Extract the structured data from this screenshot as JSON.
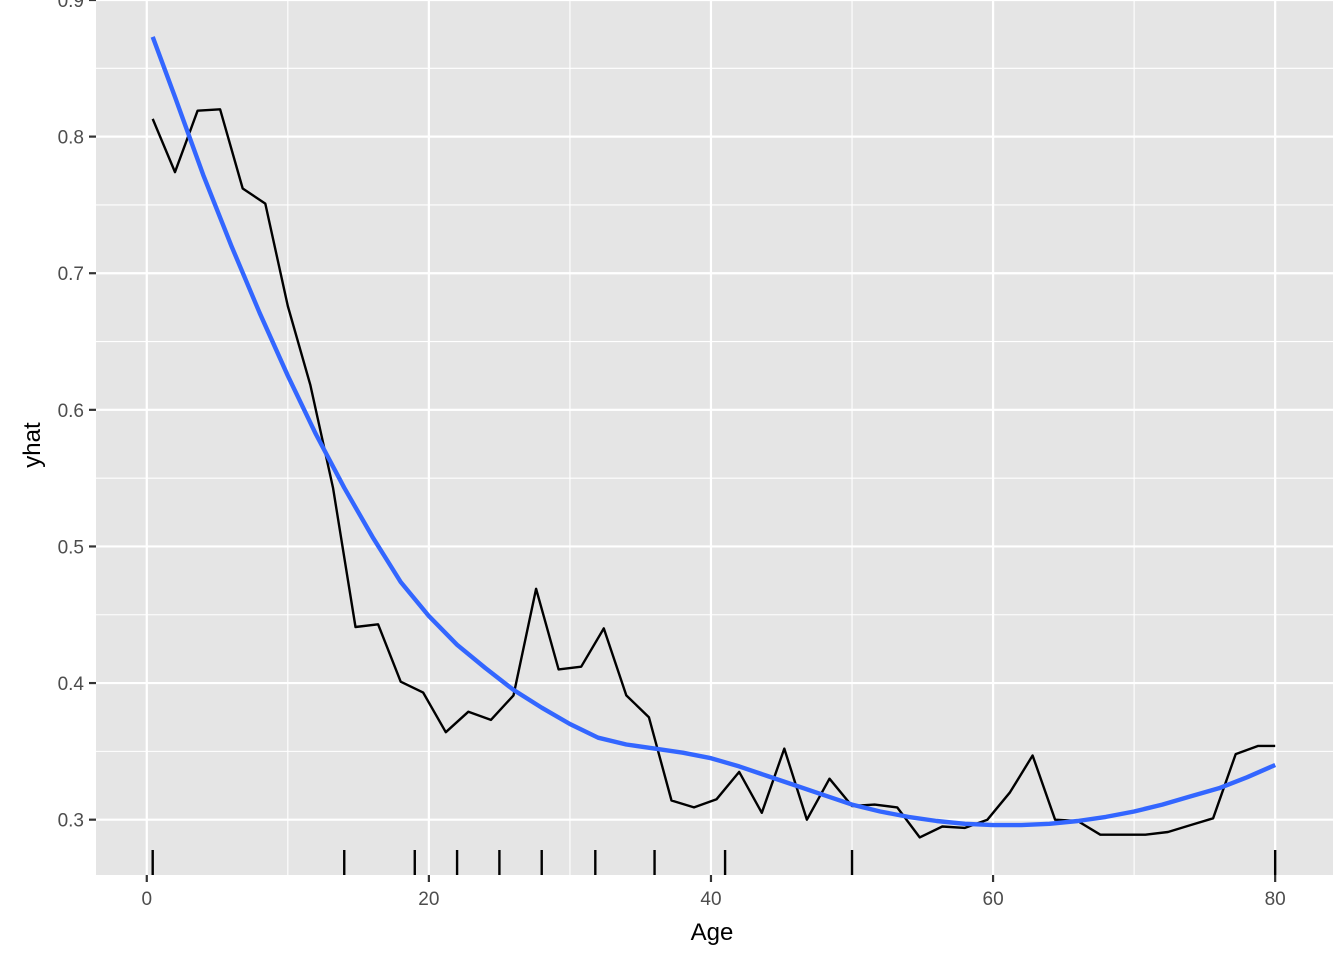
{
  "chart_data": {
    "type": "line",
    "title": "",
    "xlabel": "Age",
    "ylabel": "yhat",
    "xlim": [
      -3.6,
      84.1
    ],
    "ylim": [
      0.2595,
      0.9
    ],
    "x_ticks": [
      0,
      20,
      40,
      60,
      80
    ],
    "x_tick_labels": [
      "0",
      "20",
      "40",
      "60",
      "80"
    ],
    "y_ticks": [
      0.3,
      0.4,
      0.5,
      0.6,
      0.7,
      0.8,
      0.9
    ],
    "y_tick_labels": [
      "0.3",
      "0.4",
      "0.5",
      "0.6",
      "0.7",
      "0.8",
      "0.9"
    ],
    "grid": true,
    "colors": {
      "panel": "#e5e5e5",
      "grid": "#ffffff",
      "line": "#000000",
      "smooth": "#3366ff",
      "rug": "#000000"
    },
    "series": [
      {
        "name": "yhat",
        "x": [
          0.42,
          2.0,
          3.6,
          5.2,
          6.8,
          8.4,
          10.0,
          11.6,
          13.2,
          14.8,
          16.4,
          18.0,
          19.6,
          21.2,
          22.8,
          24.4,
          26.0,
          27.6,
          29.2,
          30.8,
          32.4,
          34.0,
          35.6,
          37.2,
          38.8,
          40.4,
          42.0,
          43.6,
          45.2,
          46.8,
          48.4,
          50.0,
          51.6,
          53.2,
          54.8,
          56.4,
          58.0,
          59.6,
          61.2,
          62.8,
          64.4,
          66.0,
          67.6,
          69.2,
          70.8,
          72.4,
          74.0,
          75.6,
          77.2,
          78.8,
          80.0
        ],
        "values": [
          0.813,
          0.774,
          0.819,
          0.82,
          0.762,
          0.751,
          0.676,
          0.618,
          0.543,
          0.441,
          0.443,
          0.401,
          0.393,
          0.364,
          0.379,
          0.373,
          0.391,
          0.469,
          0.41,
          0.412,
          0.44,
          0.391,
          0.375,
          0.314,
          0.309,
          0.315,
          0.335,
          0.305,
          0.352,
          0.3,
          0.33,
          0.31,
          0.311,
          0.309,
          0.287,
          0.295,
          0.294,
          0.3,
          0.32,
          0.347,
          0.3,
          0.299,
          0.289,
          0.289,
          0.289,
          0.291,
          0.296,
          0.301,
          0.348,
          0.354,
          0.354
        ]
      },
      {
        "name": "smooth",
        "x": [
          0.42,
          2.0,
          4.0,
          6.0,
          8.0,
          10.0,
          12.0,
          14.0,
          16.0,
          18.0,
          20.0,
          22.0,
          24.0,
          26.0,
          28.0,
          30.0,
          32.0,
          34.0,
          36.0,
          38.0,
          40.0,
          42.0,
          44.0,
          46.0,
          48.0,
          50.0,
          52.0,
          54.0,
          56.0,
          58.0,
          60.0,
          62.0,
          64.0,
          66.0,
          68.0,
          70.0,
          72.0,
          74.0,
          76.0,
          78.0,
          80.0
        ],
        "values": [
          0.873,
          0.829,
          0.772,
          0.72,
          0.671,
          0.625,
          0.582,
          0.543,
          0.507,
          0.474,
          0.449,
          0.428,
          0.411,
          0.395,
          0.382,
          0.37,
          0.36,
          0.355,
          0.352,
          0.349,
          0.345,
          0.339,
          0.332,
          0.325,
          0.318,
          0.311,
          0.306,
          0.302,
          0.299,
          0.297,
          0.296,
          0.296,
          0.297,
          0.299,
          0.302,
          0.306,
          0.311,
          0.317,
          0.323,
          0.331,
          0.34
        ]
      }
    ],
    "rug_x": [
      0.42,
      14.0,
      19.0,
      22.0,
      25.0,
      28.0,
      31.8,
      36.0,
      41.0,
      50.0,
      80.0
    ]
  }
}
